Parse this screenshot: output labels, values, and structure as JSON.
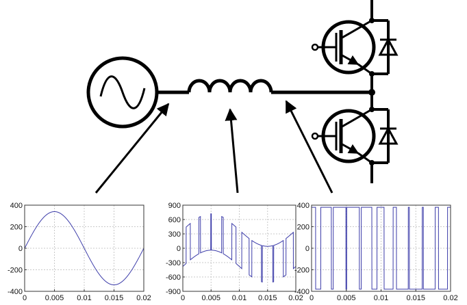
{
  "colors": {
    "wire": "#000000",
    "trace": "#3a3aa8",
    "grid": "#c8c8c8",
    "frame": "#333333"
  },
  "circuit": {
    "components": [
      "ac-source-icon",
      "inductor-icon",
      "igbt-upper-icon",
      "diode-upper-icon",
      "igbt-lower-icon",
      "diode-lower-icon"
    ]
  },
  "chart_data": [
    {
      "type": "line",
      "name": "source-voltage",
      "xlim": [
        0,
        0.02
      ],
      "ylim": [
        -400,
        400
      ],
      "x_ticks": [
        "0",
        "0.005",
        "0.01",
        "0.015",
        "0.02"
      ],
      "y_ticks": [
        "400",
        "200",
        "0",
        "-200",
        "-400"
      ],
      "x_tick_values": [
        0,
        0.005,
        0.01,
        0.015,
        0.02
      ],
      "y_tick_values": [
        400,
        200,
        0,
        -200,
        -400
      ],
      "grid": true,
      "waveform": {
        "kind": "sine",
        "amplitude": 340,
        "frequency": 50
      }
    },
    {
      "type": "line",
      "name": "inductor-voltage",
      "xlim": [
        0,
        0.02
      ],
      "ylim": [
        -900,
        900
      ],
      "x_ticks": [
        "0",
        "0.005",
        "0.01",
        "0.015",
        "0.02"
      ],
      "y_ticks": [
        "900",
        "600",
        "300",
        "0",
        "-300",
        "-600",
        "-900"
      ],
      "x_tick_values": [
        0,
        0.005,
        0.01,
        0.015,
        0.02
      ],
      "y_tick_values": [
        900,
        600,
        300,
        0,
        -300,
        -600,
        -900
      ],
      "grid": true,
      "waveform": {
        "kind": "sine-minus-pwm",
        "amplitude": 340,
        "frequency": 50,
        "dc_level": 380
      }
    },
    {
      "type": "line",
      "name": "converter-voltage",
      "xlim": [
        0,
        0.02
      ],
      "ylim": [
        -400,
        400
      ],
      "x_ticks": [
        "0",
        "0.005",
        "0.01",
        "0.015",
        "0.02"
      ],
      "y_ticks": [
        "400",
        "200",
        "0",
        "-200",
        "-400"
      ],
      "x_tick_values": [
        0,
        0.005,
        0.01,
        0.015,
        0.02
      ],
      "y_tick_values": [
        400,
        200,
        0,
        -200,
        -400
      ],
      "grid": true,
      "waveform": {
        "kind": "pwm",
        "levels": [
          380,
          -380
        ],
        "switching_periods": 10
      }
    }
  ]
}
